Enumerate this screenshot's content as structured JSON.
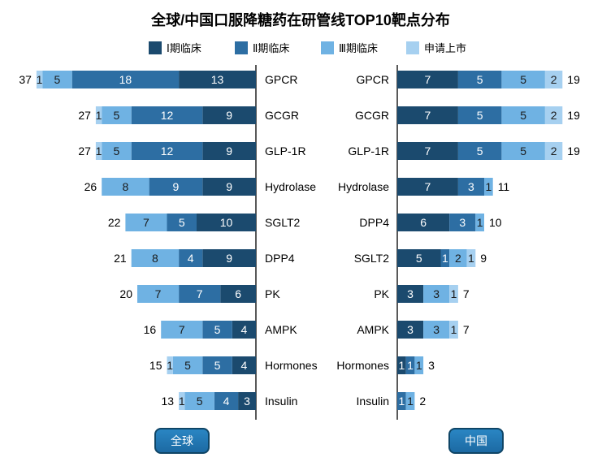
{
  "chart_data": {
    "type": "bar",
    "title": "全球/中国口服降糖药在研管线TOP10靶点分布",
    "legend": [
      "Ⅰ期临床",
      "Ⅱ期临床",
      "Ⅲ期临床",
      "申请上市"
    ],
    "colors": [
      "#1b4a6e",
      "#2d6ea3",
      "#6fb2e3",
      "#a6d0f0"
    ],
    "panels": [
      {
        "name": "全球",
        "targets": [
          "GPCR",
          "GCGR",
          "GLP-1R",
          "Hydrolase",
          "SGLT2",
          "DPP4",
          "PK",
          "AMPK",
          "Hormones",
          "Insulin"
        ],
        "phase1": [
          13,
          9,
          9,
          9,
          10,
          9,
          6,
          4,
          4,
          3
        ],
        "phase2": [
          18,
          12,
          12,
          9,
          5,
          4,
          7,
          5,
          5,
          4
        ],
        "phase3": [
          5,
          5,
          5,
          8,
          7,
          8,
          7,
          7,
          5,
          5
        ],
        "filing": [
          1,
          1,
          1,
          0,
          0,
          0,
          0,
          0,
          1,
          1
        ],
        "totals": [
          37,
          27,
          27,
          26,
          22,
          21,
          20,
          16,
          15,
          13
        ]
      },
      {
        "name": "中国",
        "targets": [
          "GPCR",
          "GCGR",
          "GLP-1R",
          "Hydrolase",
          "DPP4",
          "SGLT2",
          "PK",
          "AMPK",
          "Hormones",
          "Insulin"
        ],
        "phase1": [
          7,
          7,
          7,
          7,
          6,
          5,
          3,
          3,
          1,
          0
        ],
        "phase2": [
          5,
          5,
          5,
          3,
          3,
          1,
          0,
          0,
          1,
          1
        ],
        "phase3": [
          5,
          5,
          5,
          1,
          1,
          2,
          3,
          3,
          1,
          1
        ],
        "filing": [
          2,
          2,
          2,
          0,
          0,
          1,
          1,
          1,
          0,
          0
        ],
        "totals": [
          19,
          19,
          19,
          11,
          10,
          9,
          7,
          7,
          3,
          2
        ]
      }
    ]
  }
}
